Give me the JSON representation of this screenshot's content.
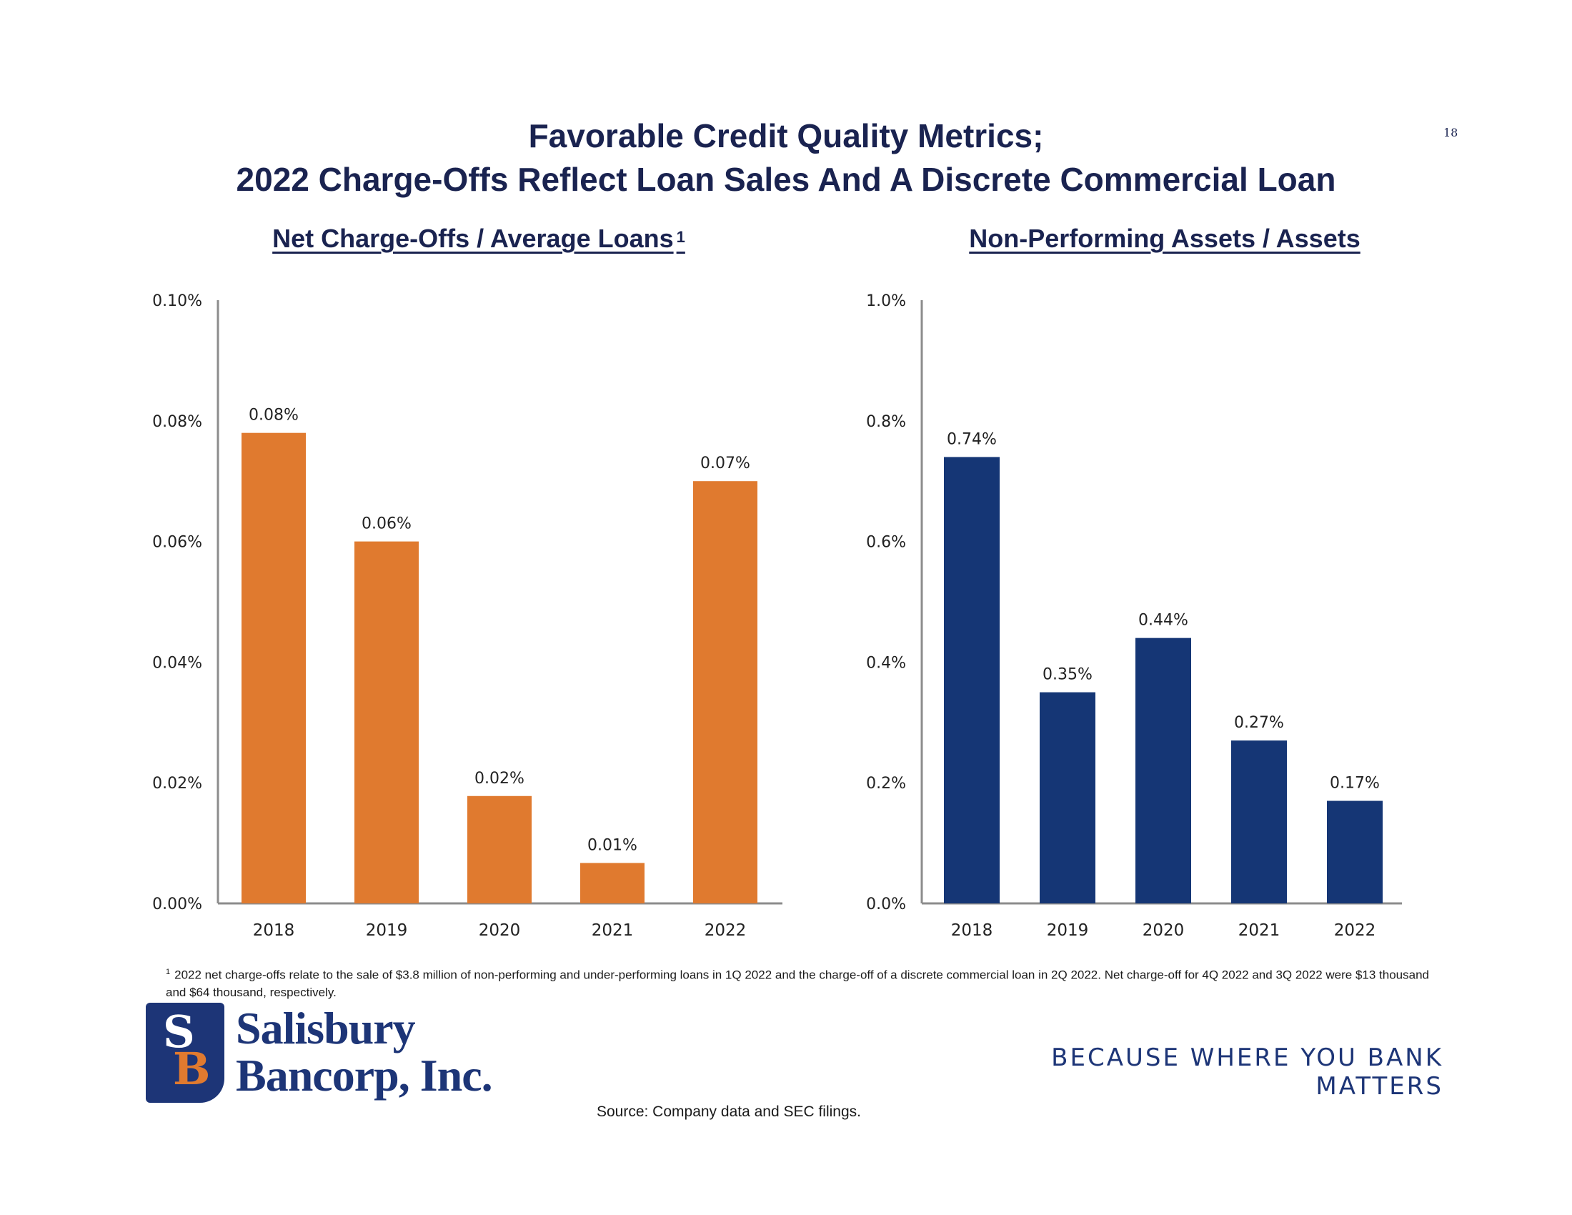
{
  "page": {
    "title_line1": "Favorable Credit Quality Metrics;",
    "title_line2": "2022 Charge-Offs Reflect Loan Sales And A Discrete Commercial Loan",
    "page_number": "18",
    "footnote_marker": "1",
    "footnote": "2022 net charge-offs relate to the sale of $3.8 million of non-performing and under-performing loans in 1Q 2022 and the charge-off of a discrete commercial loan in 2Q 2022. Net charge-off for 4Q 2022 and 3Q 2022 were $13 thousand and $64 thousand, respectively.",
    "source": "Source: Company data and SEC filings.",
    "logo_initial_top": "S",
    "logo_initial_bottom": "B",
    "logo_line1": "Salisbury",
    "logo_line2": "Bancorp, Inc.",
    "tagline": "BECAUSE WHERE YOU BANK MATTERS"
  },
  "colors": {
    "title": "#1a2350",
    "orange_bar": "#e07a2f",
    "navy_bar": "#153675",
    "axis": "#8c8c8c",
    "logo_navy": "#1d3577",
    "logo_orange": "#e07a2f"
  },
  "chart_data": [
    {
      "type": "bar",
      "title": "Net Charge-Offs / Average Loans",
      "title_footnote": "1",
      "categories": [
        "2018",
        "2019",
        "2020",
        "2021",
        "2022"
      ],
      "values": [
        0.078,
        0.06,
        0.0178,
        0.0067,
        0.07
      ],
      "value_labels": [
        "0.08%",
        "0.06%",
        "0.02%",
        "0.01%",
        "0.07%"
      ],
      "ylim": [
        0,
        0.1
      ],
      "yticks": [
        0,
        0.02,
        0.04,
        0.06,
        0.08,
        0.1
      ],
      "ytick_labels": [
        "0.00%",
        "0.02%",
        "0.04%",
        "0.06%",
        "0.08%",
        "0.10%"
      ],
      "grid": false,
      "legend": "none",
      "color": "#e07a2f"
    },
    {
      "type": "bar",
      "title": "Non-Performing Assets / Assets",
      "categories": [
        "2018",
        "2019",
        "2020",
        "2021",
        "2022"
      ],
      "values": [
        0.74,
        0.35,
        0.44,
        0.27,
        0.17
      ],
      "value_labels": [
        "0.74%",
        "0.35%",
        "0.44%",
        "0.27%",
        "0.17%"
      ],
      "ylim": [
        0,
        1.0
      ],
      "yticks": [
        0,
        0.2,
        0.4,
        0.6,
        0.8,
        1.0
      ],
      "ytick_labels": [
        "0.0%",
        "0.2%",
        "0.4%",
        "0.6%",
        "0.8%",
        "1.0%"
      ],
      "grid": false,
      "legend": "none",
      "color": "#153675"
    }
  ]
}
